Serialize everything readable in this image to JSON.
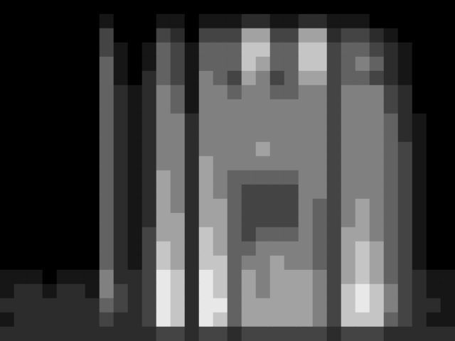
{
  "chart_data": {
    "type": "heatmap",
    "tick_labels": false,
    "color_range": [
      0,
      8
    ],
    "cells": [
      [
        0,
        0,
        0,
        0,
        0,
        0,
        0,
        0,
        0,
        0,
        0,
        0,
        0,
        0,
        0,
        0,
        0,
        0,
        0,
        0,
        0,
        0,
        0,
        0,
        0,
        0,
        0,
        0,
        0,
        0,
        0,
        0
      ],
      [
        0,
        0,
        0,
        0,
        0,
        0,
        0,
        1,
        0,
        0,
        0,
        1,
        1,
        0,
        1,
        1,
        1,
        2,
        2,
        1,
        1,
        2,
        2,
        1,
        1,
        1,
        0,
        0,
        0,
        0,
        0,
        0
      ],
      [
        0,
        0,
        0,
        0,
        0,
        0,
        0,
        3,
        0,
        0,
        0,
        3,
        2,
        0,
        3,
        3,
        3,
        6,
        6,
        3,
        3,
        6,
        6,
        2,
        3,
        3,
        2,
        1,
        0,
        0,
        0,
        0
      ],
      [
        0,
        0,
        0,
        0,
        0,
        0,
        0,
        3,
        1,
        0,
        1,
        4,
        3,
        1,
        4,
        4,
        4,
        7,
        7,
        4,
        4,
        7,
        7,
        3,
        4,
        4,
        3,
        2,
        1,
        0,
        0,
        0
      ],
      [
        0,
        0,
        0,
        0,
        0,
        0,
        0,
        4,
        1,
        0,
        1,
        4,
        3,
        1,
        4,
        4,
        4,
        7,
        6,
        4,
        4,
        7,
        7,
        3,
        4,
        5,
        4,
        2,
        1,
        0,
        0,
        0
      ],
      [
        0,
        0,
        0,
        0,
        0,
        0,
        0,
        4,
        1,
        0,
        2,
        4,
        3,
        1,
        5,
        4,
        3,
        6,
        5,
        3,
        4,
        6,
        6,
        3,
        4,
        4,
        3,
        2,
        1,
        0,
        0,
        0
      ],
      [
        0,
        0,
        0,
        0,
        0,
        0,
        0,
        4,
        2,
        1,
        2,
        5,
        4,
        1,
        5,
        5,
        4,
        5,
        5,
        4,
        4,
        5,
        5,
        3,
        5,
        5,
        5,
        3,
        2,
        0,
        0,
        0
      ],
      [
        0,
        0,
        0,
        0,
        0,
        0,
        0,
        4,
        2,
        1,
        2,
        5,
        4,
        1,
        5,
        5,
        5,
        5,
        5,
        5,
        5,
        5,
        5,
        3,
        5,
        5,
        5,
        3,
        2,
        0,
        0,
        0
      ],
      [
        0,
        0,
        0,
        0,
        0,
        0,
        0,
        4,
        2,
        1,
        2,
        5,
        5,
        2,
        5,
        5,
        5,
        5,
        5,
        5,
        5,
        5,
        5,
        3,
        5,
        5,
        5,
        4,
        2,
        1,
        0,
        0
      ],
      [
        0,
        0,
        0,
        0,
        0,
        0,
        0,
        4,
        2,
        1,
        2,
        5,
        5,
        2,
        5,
        5,
        5,
        5,
        5,
        5,
        5,
        5,
        5,
        3,
        5,
        5,
        5,
        4,
        2,
        1,
        0,
        0
      ],
      [
        0,
        0,
        0,
        0,
        0,
        0,
        0,
        4,
        2,
        1,
        2,
        5,
        5,
        2,
        5,
        5,
        5,
        5,
        6,
        5,
        5,
        5,
        5,
        3,
        5,
        5,
        5,
        4,
        3,
        1,
        0,
        0
      ],
      [
        0,
        0,
        0,
        0,
        0,
        0,
        0,
        4,
        2,
        1,
        2,
        5,
        5,
        2,
        6,
        5,
        5,
        5,
        5,
        5,
        5,
        5,
        5,
        3,
        5,
        5,
        5,
        4,
        3,
        1,
        0,
        0
      ],
      [
        0,
        0,
        0,
        0,
        0,
        0,
        0,
        4,
        2,
        1,
        2,
        6,
        5,
        2,
        6,
        5,
        4,
        4,
        4,
        4,
        4,
        5,
        5,
        3,
        5,
        5,
        5,
        4,
        3,
        1,
        0,
        0
      ],
      [
        0,
        0,
        0,
        0,
        0,
        0,
        0,
        4,
        2,
        1,
        2,
        6,
        5,
        2,
        6,
        5,
        4,
        3,
        3,
        3,
        3,
        5,
        5,
        3,
        5,
        5,
        5,
        4,
        3,
        1,
        0,
        0
      ],
      [
        0,
        0,
        0,
        0,
        0,
        0,
        0,
        4,
        2,
        1,
        2,
        6,
        5,
        2,
        6,
        6,
        4,
        3,
        3,
        3,
        3,
        5,
        4,
        3,
        5,
        6,
        5,
        4,
        3,
        1,
        0,
        0
      ],
      [
        0,
        0,
        0,
        0,
        0,
        0,
        0,
        4,
        2,
        1,
        2,
        6,
        6,
        2,
        6,
        6,
        4,
        3,
        3,
        3,
        3,
        5,
        4,
        3,
        5,
        6,
        5,
        4,
        3,
        1,
        0,
        0
      ],
      [
        0,
        0,
        0,
        0,
        0,
        0,
        0,
        4,
        2,
        1,
        3,
        6,
        6,
        2,
        7,
        6,
        4,
        3,
        4,
        4,
        4,
        5,
        4,
        3,
        6,
        6,
        5,
        4,
        3,
        1,
        0,
        0
      ],
      [
        0,
        0,
        0,
        0,
        0,
        0,
        0,
        4,
        2,
        1,
        3,
        7,
        6,
        2,
        7,
        6,
        4,
        4,
        5,
        5,
        5,
        5,
        4,
        3,
        6,
        7,
        6,
        4,
        3,
        1,
        0,
        0
      ],
      [
        0,
        0,
        0,
        0,
        0,
        0,
        0,
        4,
        2,
        1,
        3,
        7,
        6,
        2,
        7,
        7,
        4,
        5,
        5,
        6,
        5,
        5,
        4,
        3,
        6,
        7,
        6,
        4,
        3,
        1,
        0,
        0
      ],
      [
        1,
        1,
        1,
        0,
        1,
        1,
        1,
        5,
        2,
        2,
        3,
        8,
        7,
        2,
        8,
        7,
        4,
        6,
        5,
        6,
        6,
        6,
        5,
        3,
        6,
        7,
        6,
        4,
        3,
        2,
        1,
        1
      ],
      [
        1,
        2,
        2,
        1,
        2,
        2,
        1,
        5,
        3,
        2,
        3,
        8,
        7,
        2,
        8,
        7,
        4,
        6,
        5,
        6,
        6,
        6,
        5,
        3,
        7,
        8,
        7,
        5,
        3,
        2,
        1,
        1
      ],
      [
        2,
        2,
        2,
        2,
        2,
        2,
        2,
        4,
        3,
        2,
        3,
        8,
        7,
        2,
        8,
        8,
        4,
        6,
        6,
        6,
        6,
        6,
        5,
        3,
        7,
        8,
        7,
        5,
        3,
        2,
        2,
        1
      ],
      [
        1,
        2,
        2,
        2,
        2,
        2,
        2,
        3,
        2,
        2,
        3,
        8,
        7,
        2,
        8,
        7,
        4,
        6,
        6,
        6,
        6,
        6,
        5,
        3,
        7,
        7,
        7,
        4,
        3,
        2,
        1,
        1
      ],
      [
        2,
        2,
        2,
        2,
        2,
        2,
        2,
        2,
        2,
        2,
        2,
        3,
        3,
        2,
        3,
        3,
        2,
        3,
        3,
        3,
        3,
        3,
        3,
        2,
        3,
        3,
        3,
        2,
        2,
        2,
        2,
        2
      ]
    ]
  }
}
